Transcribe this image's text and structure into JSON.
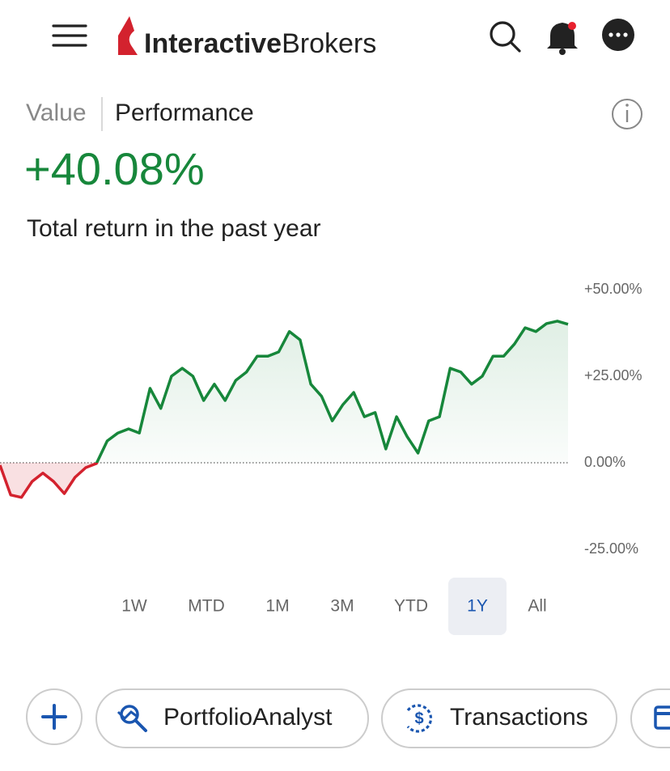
{
  "header": {
    "brand_bold": "Interactive",
    "brand_light": "Brokers"
  },
  "tabs": [
    "Value",
    "Performance"
  ],
  "headline": "+40.08%",
  "subtitle": "Total return in the past year",
  "chart_data": {
    "type": "line",
    "series": [
      {
        "color": "#17873b",
        "negative_color": "#d3222e",
        "values": [
          -0.7,
          -9.3,
          -10,
          -5.4,
          -3,
          -5.4,
          -8.9,
          -4.2,
          -1.4,
          -0.2,
          6.3,
          8.6,
          9.8,
          8.6,
          21.5,
          15.7,
          25,
          27.3,
          25,
          18,
          22.7,
          18,
          23.8,
          26.2,
          30.8,
          30.8,
          32,
          37.9,
          35.5,
          22.7,
          19.2,
          12.1,
          16.8,
          20.3,
          13.3,
          14.5,
          4,
          13.3,
          7.5,
          2.8,
          12.1,
          13.3,
          27.3,
          26.2,
          22.7,
          25,
          30.8,
          30.8,
          34.3,
          39,
          37.9,
          40.2,
          40.9,
          40
        ]
      }
    ],
    "ylim": [
      -25,
      50
    ],
    "yticks": [
      {
        "value": 50,
        "label": "+50.00%"
      },
      {
        "value": 25,
        "label": "+25.00%"
      },
      {
        "value": 0,
        "label": "0.00%"
      },
      {
        "value": -25,
        "label": "-25.00%"
      }
    ]
  },
  "ranges": [
    "1W",
    "MTD",
    "1M",
    "3M",
    "YTD",
    "1Y",
    "All"
  ],
  "selected_range_index": 5,
  "actions": [
    "PortfolioAnalyst",
    "Transactions"
  ]
}
